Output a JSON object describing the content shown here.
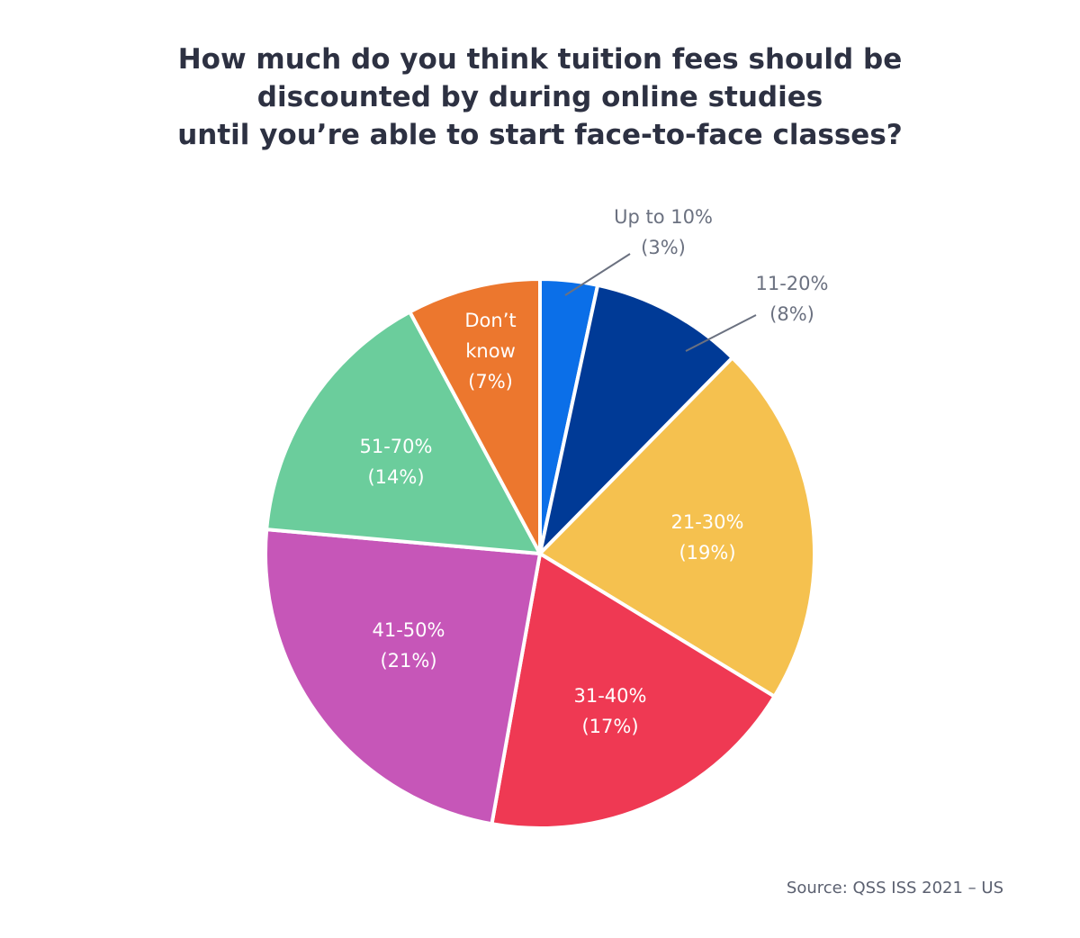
{
  "chart_data": {
    "type": "pie",
    "title": [
      "How much do you think tuition fees should be",
      "discounted by during online studies",
      "until you’re able to start face-to-face classes?"
    ],
    "categories": [
      "Up to 10%",
      "11-20%",
      "21-30%",
      "31-40%",
      "41-50%",
      "51-70%",
      "Don’t know"
    ],
    "values": [
      3,
      8,
      19,
      17,
      21,
      14,
      7
    ],
    "value_labels": [
      "(3%)",
      "(8%)",
      "(19%)",
      "(17%)",
      "(21%)",
      "(14%)",
      "(7%)"
    ],
    "colors": [
      "#0b6fe8",
      "#003a96",
      "#f5c14f",
      "#ef3953",
      "#c656b8",
      "#6bcd9c",
      "#ec772e"
    ],
    "source": "Source: QSS ISS 2021 – US"
  }
}
